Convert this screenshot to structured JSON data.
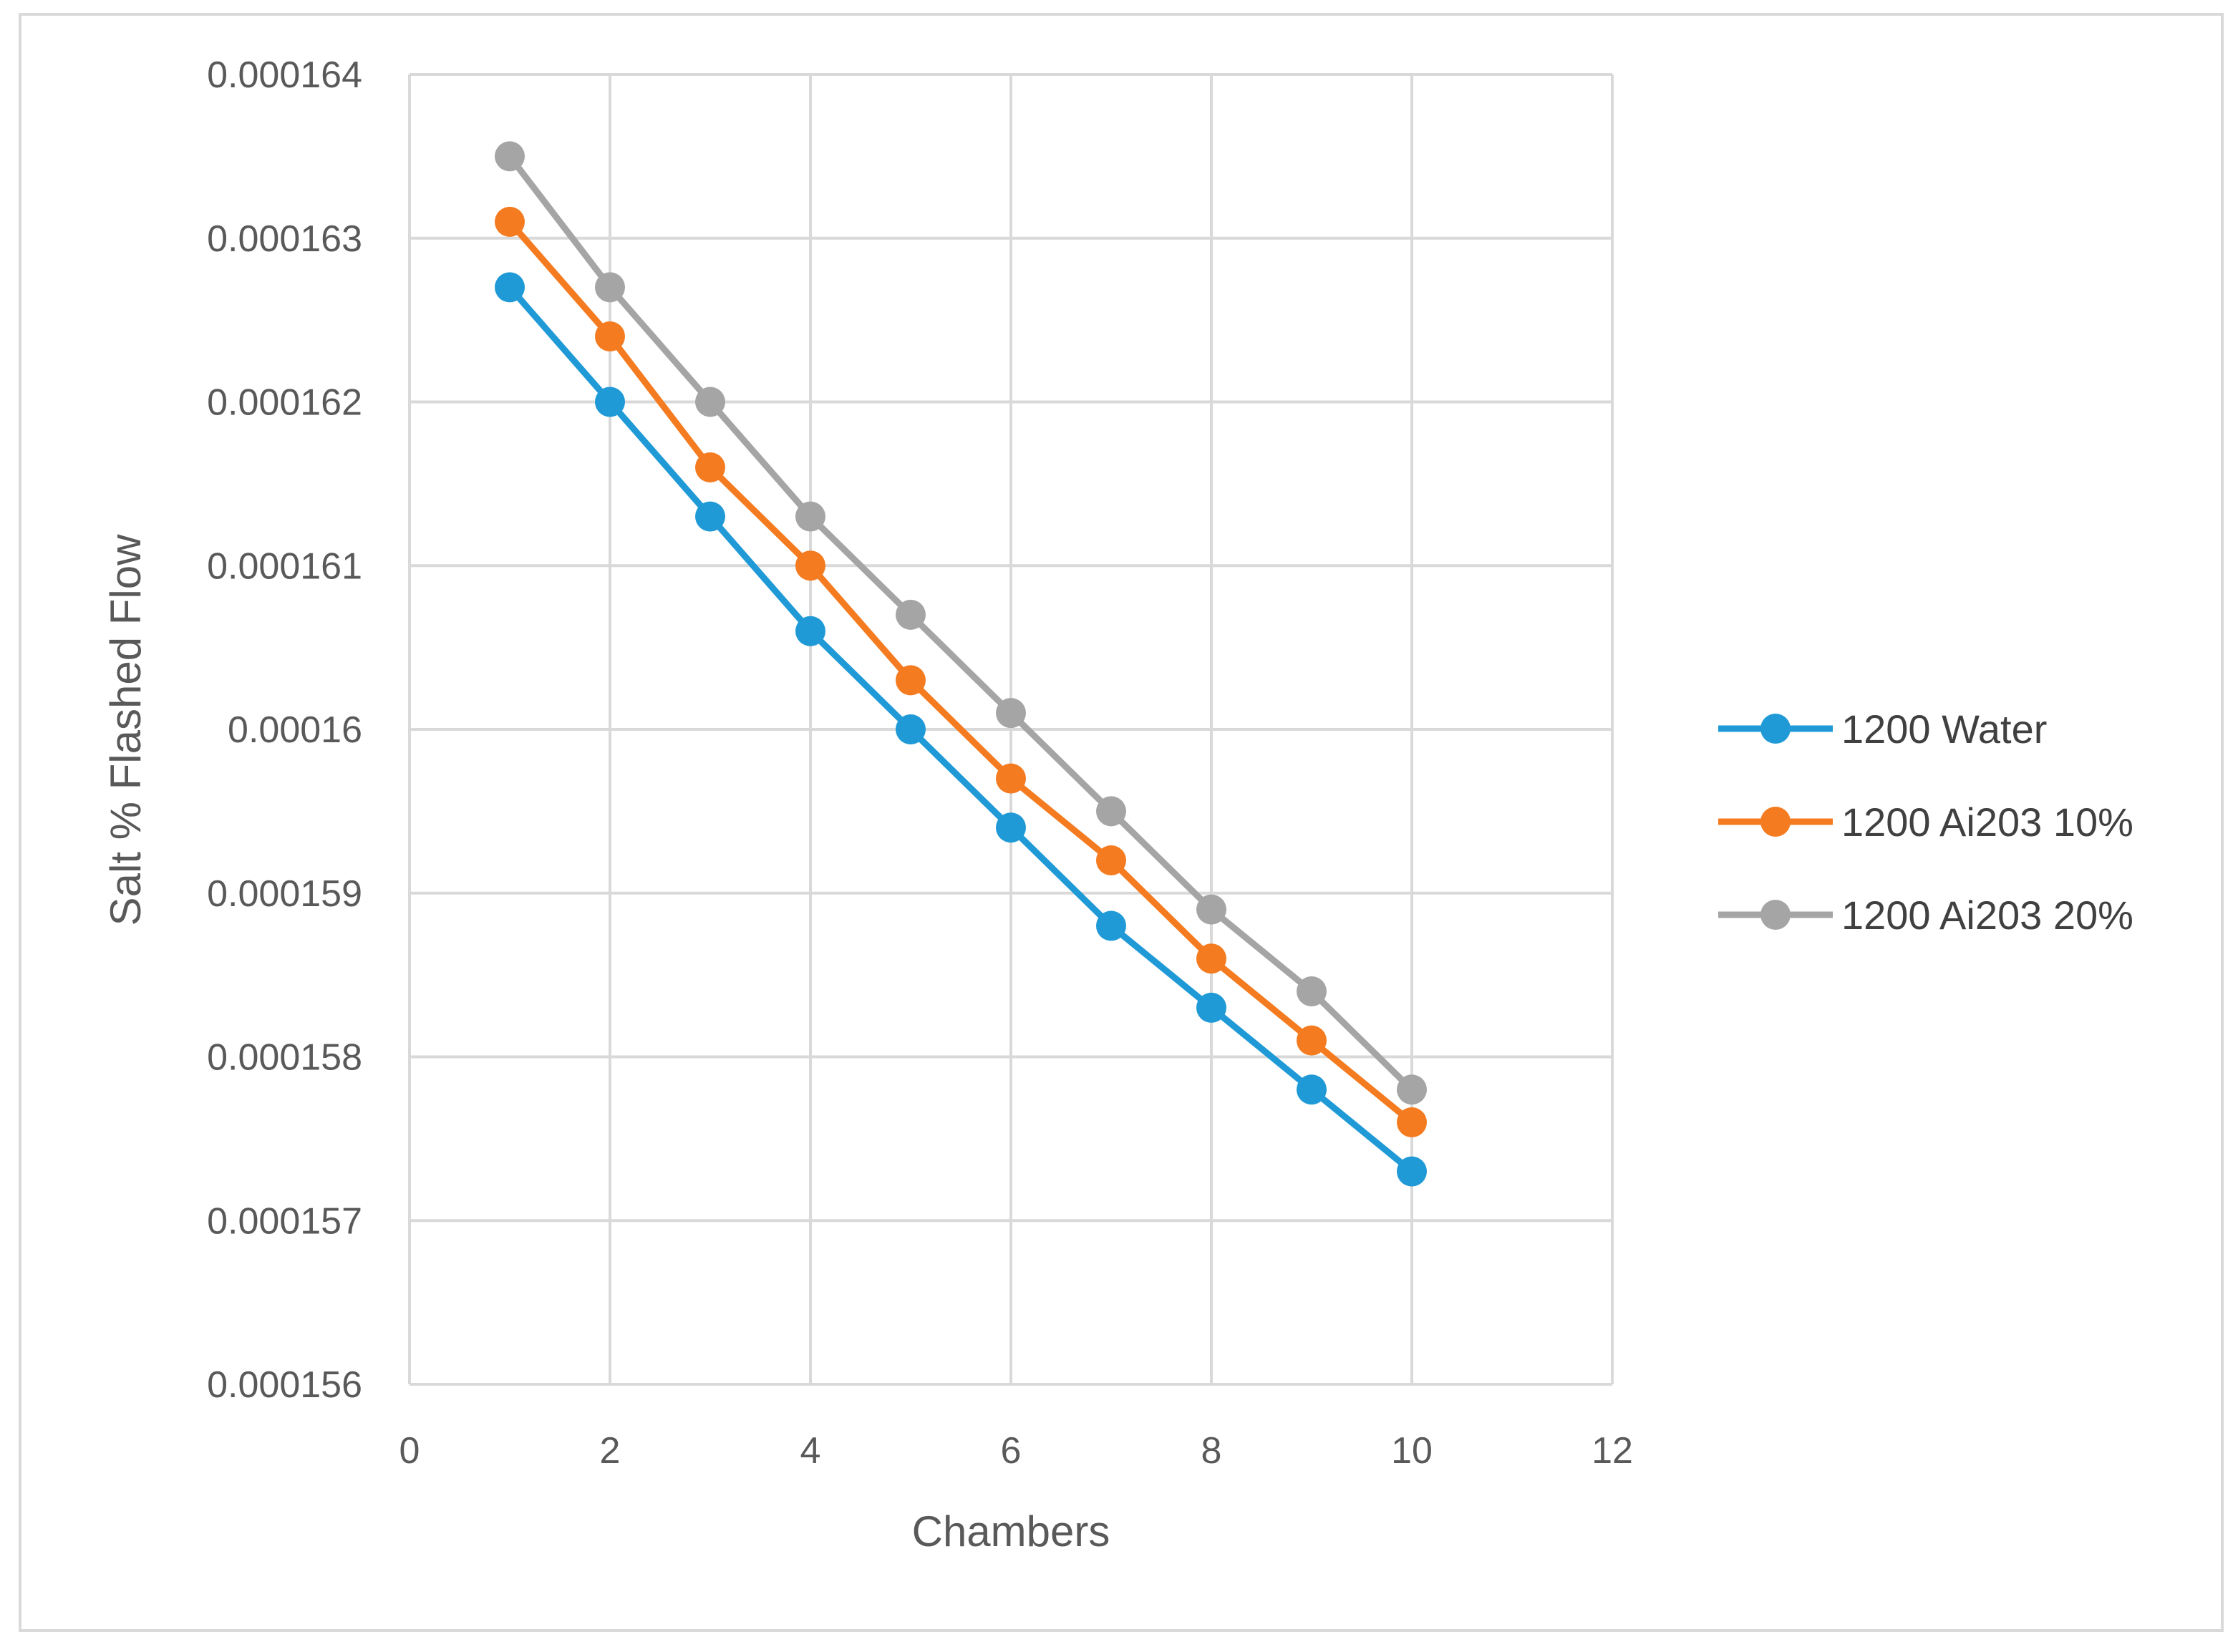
{
  "chart_data": {
    "type": "line",
    "xlabel": "Chambers",
    "ylabel": "Salt % Flashed Flow",
    "xlim": [
      0,
      12
    ],
    "ylim": [
      0.000156,
      0.000164
    ],
    "xticks": [
      0,
      2,
      4,
      6,
      8,
      10,
      12
    ],
    "yticks": [
      0.000156,
      0.000157,
      0.000158,
      0.000159,
      0.00016,
      0.000161,
      0.000162,
      0.000163,
      0.000164
    ],
    "ytick_labels": [
      "0.000156",
      "0.000157",
      "0.000158",
      "0.000159",
      "0.00016",
      "0.000161",
      "0.000162",
      "0.000163",
      "0.000164"
    ],
    "grid": true,
    "legend_position": "right",
    "x": [
      1,
      2,
      3,
      4,
      5,
      6,
      7,
      8,
      9,
      10
    ],
    "series": [
      {
        "name": "1200 Water",
        "color": "#1f9ad6",
        "values": [
          0.0001627,
          0.000162,
          0.0001613,
          0.0001606,
          0.00016,
          0.0001594,
          0.0001588,
          0.0001583,
          0.0001578,
          0.0001573
        ]
      },
      {
        "name": "1200 Ai203 10%",
        "color": "#f47b20",
        "values": [
          0.0001631,
          0.0001624,
          0.0001616,
          0.000161,
          0.0001603,
          0.0001597,
          0.0001592,
          0.0001586,
          0.0001581,
          0.0001576
        ]
      },
      {
        "name": "1200 Ai203 20%",
        "color": "#a5a5a5",
        "values": [
          0.0001635,
          0.0001627,
          0.000162,
          0.0001613,
          0.0001607,
          0.0001601,
          0.0001595,
          0.0001589,
          0.0001584,
          0.0001578
        ]
      }
    ]
  }
}
